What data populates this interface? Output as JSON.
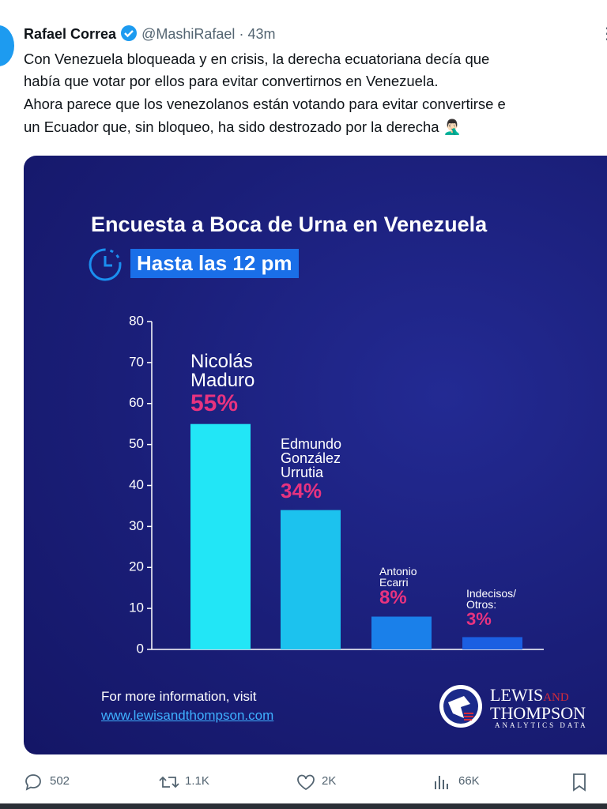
{
  "tweet": {
    "author": "Rafael Correa",
    "handle": "@MashiRafael",
    "time": "43m",
    "text_lines": [
      "Con Venezuela bloqueada y en crisis, la derecha ecuatoriana decía que",
      "había que votar por ellos para evitar convertirnos en Venezuela.",
      "Ahora parece que los venezolanos están votando para evitar convertirse e",
      "un Ecuador que, sin bloqueo, ha sido destrozado por la derecha 🤦🏻‍♂️"
    ]
  },
  "chart_data": {
    "type": "bar",
    "title": "Encuesta a Boca de Urna en Venezuela",
    "subtitle": "Hasta las 12 pm",
    "categories": [
      "Nicolás Maduro",
      "Edmundo González Urrutia",
      "Antonio Ecarri",
      "Indecisos/ Otros:"
    ],
    "values": [
      55,
      34,
      8,
      3
    ],
    "value_labels": [
      "55%",
      "34%",
      "8%",
      "3%"
    ],
    "colors": [
      "#22e6f6",
      "#1cc2ee",
      "#1a80ea",
      "#1b5fe2"
    ],
    "label_color": "#e8337f",
    "ylim": [
      0,
      80
    ],
    "yticks": [
      0,
      10,
      20,
      30,
      40,
      50,
      60,
      70,
      80
    ],
    "footer": "For more information, visit",
    "link": "www.lewisandthompson.com",
    "logo": {
      "name_1": "LEWIS",
      "name_2": "AND",
      "name_3": "THOMPSON",
      "tagline": "ANALYTICS DATA"
    }
  },
  "actions": {
    "replies": "502",
    "reposts": "1.1K",
    "likes": "2K",
    "views": "66K"
  }
}
